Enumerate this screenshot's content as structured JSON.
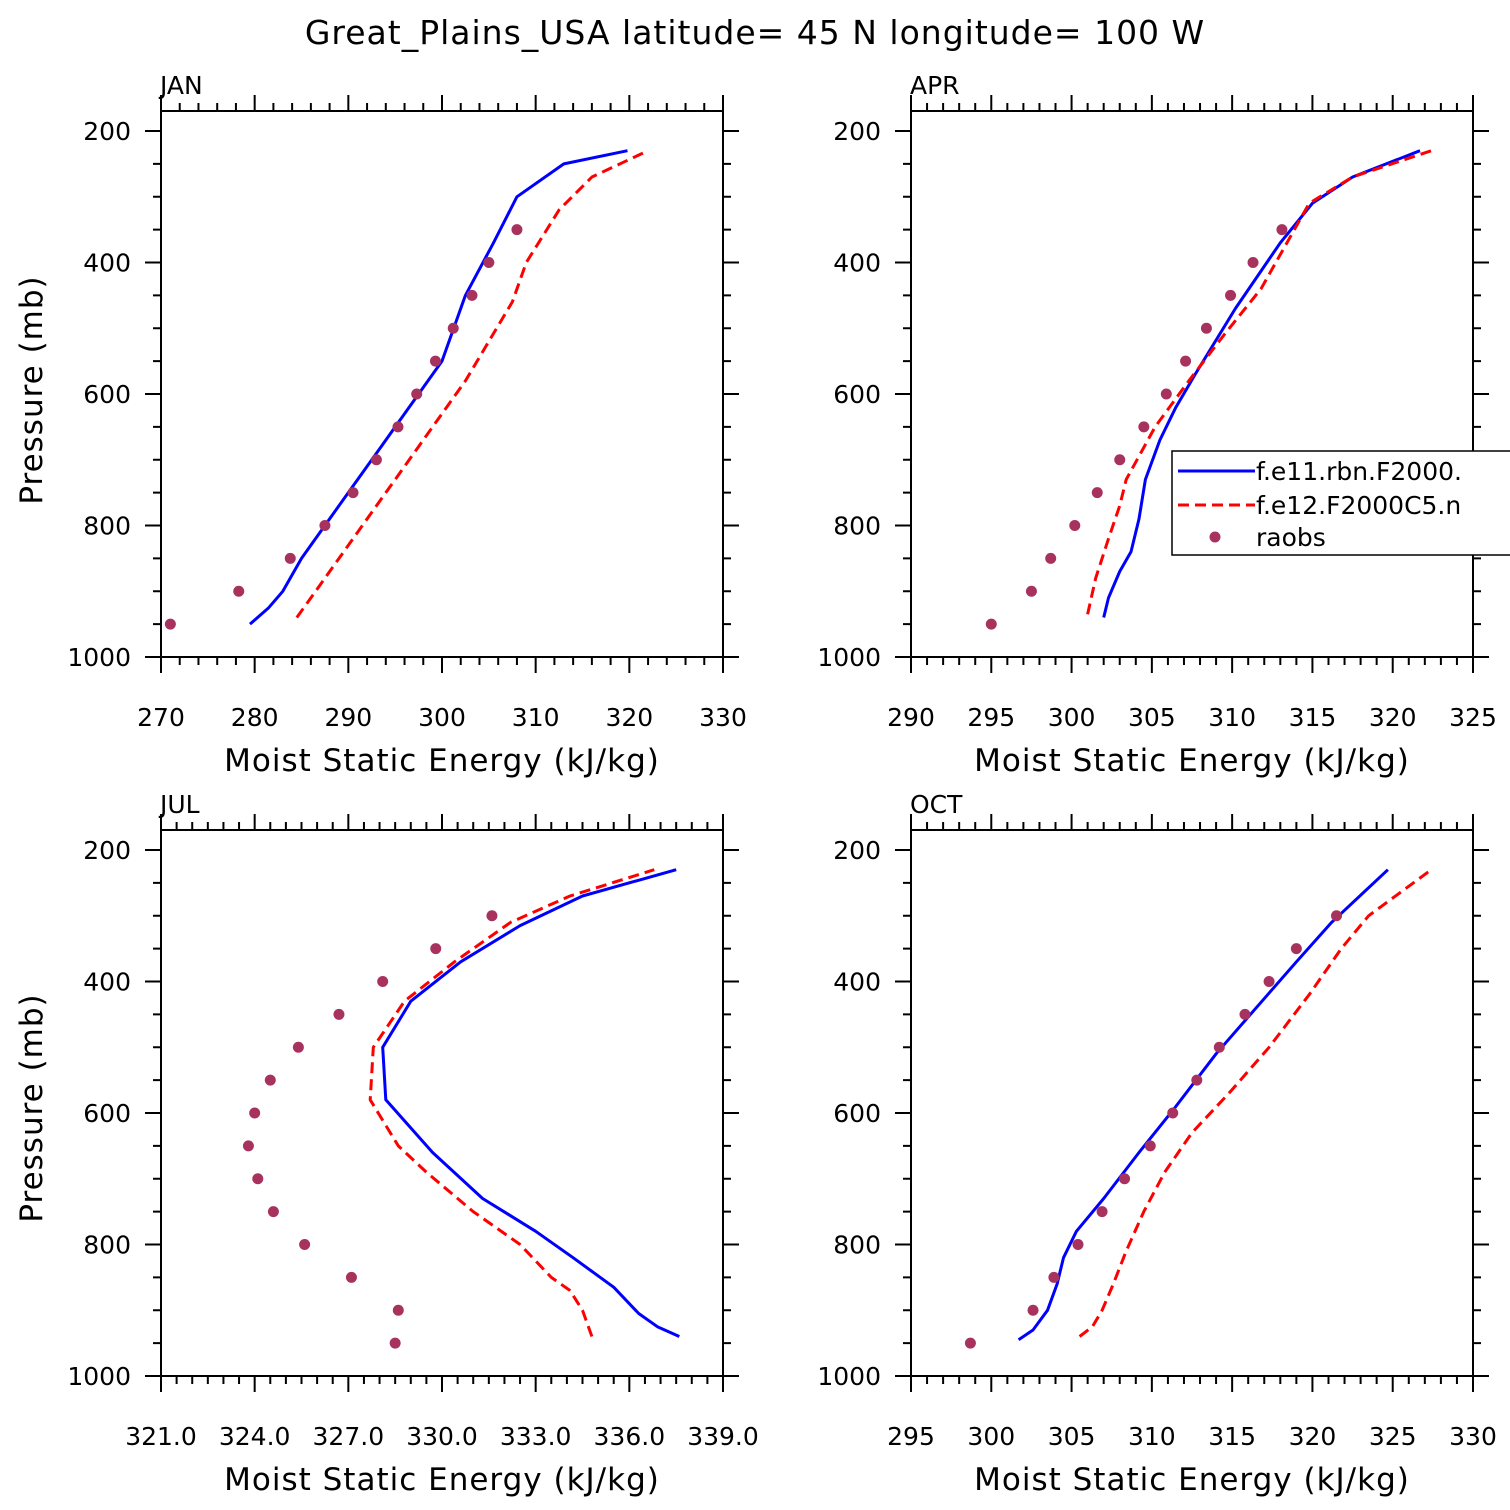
{
  "figure": {
    "title": "Great_Plains_USA  latitude= 45 N longitude= 100 W"
  },
  "colors": {
    "model1": "#0000ff",
    "model2": "#ff0000",
    "raobs": "#a8325e",
    "axes": "#000000"
  },
  "legend": {
    "entries": [
      {
        "label": "f.e11.rbn.F2000.",
        "style": "solid",
        "color": "#0000ff"
      },
      {
        "label": "f.e12.F2000C5.n",
        "style": "dashed",
        "color": "#ff0000"
      },
      {
        "label": "raobs",
        "style": "marker",
        "color": "#a8325e"
      }
    ]
  },
  "chart_data": [
    {
      "type": "line",
      "panel": "JAN",
      "title": "JAN",
      "xlabel": "Moist Static Energy (kJ/kg)",
      "ylabel": "Pressure (mb)",
      "xlim": [
        270,
        330
      ],
      "ylim": [
        1000,
        200
      ],
      "xticks": [
        270,
        280,
        290,
        300,
        310,
        320,
        330
      ],
      "xtick_labels": [
        "270",
        "280",
        "290",
        "300",
        "310",
        "320",
        "330"
      ],
      "xminor_step": 2,
      "yticks": [
        1000,
        800,
        600,
        400,
        200
      ],
      "ytick_labels": [
        "1000",
        "800",
        "600",
        "400",
        "200"
      ],
      "series": [
        {
          "name": "f.e11.rbn.F2000.",
          "style": "solid",
          "x": [
            279.5,
            281.5,
            283,
            285,
            287.5,
            290,
            292.5,
            295,
            297.5,
            300,
            302.5,
            305.5,
            308,
            313,
            319.8
          ],
          "y": [
            950,
            925,
            900,
            850,
            800,
            750,
            700,
            650,
            600,
            550,
            450,
            370,
            300,
            250,
            230
          ]
        },
        {
          "name": "f.e12.F2000C5.n",
          "style": "dashed",
          "x": [
            284.5,
            286.5,
            288.5,
            290.5,
            292.5,
            295,
            297.5,
            300,
            302.5,
            305,
            307.5,
            309,
            312.5,
            316,
            322
          ],
          "y": [
            940,
            900,
            860,
            820,
            780,
            730,
            680,
            630,
            580,
            520,
            460,
            400,
            320,
            270,
            230
          ]
        },
        {
          "name": "raobs",
          "style": "marker",
          "x": [
            271,
            278.3,
            283.8,
            287.5,
            290.5,
            293.0,
            295.3,
            297.3,
            299.3,
            301.2,
            303.2,
            305.0,
            308.0
          ],
          "y": [
            950,
            900,
            850,
            800,
            750,
            700,
            650,
            600,
            550,
            500,
            450,
            400,
            350
          ]
        }
      ]
    },
    {
      "type": "line",
      "panel": "APR",
      "title": "APR",
      "xlabel": "Moist Static Energy (kJ/kg)",
      "ylabel": "",
      "xlim": [
        290,
        325
      ],
      "ylim": [
        1000,
        200
      ],
      "xticks": [
        290,
        295,
        300,
        305,
        310,
        315,
        320,
        325
      ],
      "xtick_labels": [
        "290",
        "295",
        "300",
        "305",
        "310",
        "315",
        "320",
        "325"
      ],
      "xminor_step": 1,
      "yticks": [
        1000,
        800,
        600,
        400,
        200
      ],
      "ytick_labels": [
        "1000",
        "800",
        "600",
        "400",
        "200"
      ],
      "series": [
        {
          "name": "f.e11.rbn.F2000.",
          "style": "solid",
          "x": [
            302,
            302.3,
            303,
            303.7,
            304.2,
            304.6,
            305.5,
            306.5,
            307.7,
            310.2,
            313,
            315,
            317.5,
            321.7
          ],
          "y": [
            940,
            910,
            870,
            840,
            790,
            730,
            670,
            620,
            570,
            470,
            370,
            310,
            270,
            230
          ]
        },
        {
          "name": "f.e12.F2000C5.n",
          "style": "dashed",
          "x": [
            301,
            301.5,
            302.3,
            303,
            303.4,
            305.2,
            307.3,
            309.5,
            311.8,
            314.8,
            317.5,
            322.4
          ],
          "y": [
            935,
            880,
            820,
            770,
            730,
            650,
            580,
            510,
            440,
            310,
            270,
            230
          ]
        },
        {
          "name": "raobs",
          "style": "marker",
          "x": [
            295.0,
            297.5,
            298.7,
            300.2,
            301.6,
            303.0,
            304.5,
            305.9,
            307.1,
            308.4,
            309.9,
            311.3,
            313.1
          ],
          "y": [
            950,
            900,
            850,
            800,
            750,
            700,
            650,
            600,
            550,
            500,
            450,
            400,
            350
          ]
        }
      ]
    },
    {
      "type": "line",
      "panel": "JUL",
      "title": "JUL",
      "xlabel": "Moist Static Energy (kJ/kg)",
      "ylabel": "Pressure (mb)",
      "xlim": [
        321,
        339
      ],
      "ylim": [
        1000,
        200
      ],
      "xticks": [
        321,
        324,
        327,
        330,
        333,
        336,
        339
      ],
      "xtick_labels": [
        "321.0",
        "324.0",
        "327.0",
        "330.0",
        "333.0",
        "336.0",
        "339.0"
      ],
      "xminor_step": 0.5,
      "yticks": [
        1000,
        800,
        600,
        400,
        200
      ],
      "ytick_labels": [
        "1000",
        "800",
        "600",
        "400",
        "200"
      ],
      "series": [
        {
          "name": "f.e11.rbn.F2000.",
          "style": "solid",
          "x": [
            337.6,
            336.9,
            336.3,
            335.5,
            334.2,
            333.0,
            331.3,
            329.7,
            328.2,
            328.1,
            329.0,
            330.6,
            332.5,
            334.5,
            337.5
          ],
          "y": [
            940,
            925,
            905,
            865,
            820,
            780,
            730,
            660,
            580,
            500,
            430,
            370,
            315,
            270,
            230
          ]
        },
        {
          "name": "f.e12.F2000C5.n",
          "style": "dashed",
          "x": [
            334.8,
            334.5,
            334.1,
            333.5,
            332.5,
            331.0,
            329.5,
            328.6,
            327.7,
            327.8,
            328.8,
            330.4,
            332.2,
            334.1,
            336.8
          ],
          "y": [
            940,
            900,
            870,
            850,
            800,
            750,
            690,
            650,
            580,
            500,
            430,
            370,
            310,
            270,
            230
          ]
        },
        {
          "name": "raobs",
          "style": "marker",
          "x": [
            328.5,
            328.6,
            327.1,
            325.6,
            324.6,
            324.1,
            323.8,
            324.0,
            324.5,
            325.4,
            326.7,
            328.1,
            329.8,
            331.6
          ],
          "y": [
            950,
            900,
            850,
            800,
            750,
            700,
            650,
            600,
            550,
            500,
            450,
            400,
            350,
            300
          ]
        }
      ]
    },
    {
      "type": "line",
      "panel": "OCT",
      "title": "OCT",
      "xlabel": "Moist Static Energy (kJ/kg)",
      "ylabel": "",
      "xlim": [
        295,
        330
      ],
      "ylim": [
        1000,
        200
      ],
      "xticks": [
        295,
        300,
        305,
        310,
        315,
        320,
        325,
        330
      ],
      "xtick_labels": [
        "295",
        "300",
        "305",
        "310",
        "315",
        "320",
        "325",
        "330"
      ],
      "xminor_step": 1,
      "yticks": [
        1000,
        800,
        600,
        400,
        200
      ],
      "ytick_labels": [
        "1000",
        "800",
        "600",
        "400",
        "200"
      ],
      "series": [
        {
          "name": "f.e11.rbn.F2000.",
          "style": "solid",
          "x": [
            301.7,
            302.6,
            303.5,
            304.1,
            304.5,
            305.3,
            307.0,
            309.2,
            311.5,
            314.0,
            316.5,
            319.0,
            321.2,
            324.7
          ],
          "y": [
            945,
            930,
            900,
            860,
            820,
            780,
            730,
            660,
            590,
            510,
            440,
            370,
            310,
            230
          ]
        },
        {
          "name": "f.e12.F2000C5.n",
          "style": "dashed",
          "x": [
            305.5,
            306.3,
            306.9,
            307.6,
            308.4,
            309.5,
            310.8,
            312.5,
            314.8,
            317.3,
            319.8,
            321.8,
            323.5,
            327.4
          ],
          "y": [
            940,
            925,
            900,
            860,
            810,
            750,
            690,
            630,
            570,
            500,
            420,
            350,
            300,
            230
          ]
        },
        {
          "name": "raobs",
          "style": "marker",
          "x": [
            298.7,
            302.6,
            303.9,
            305.4,
            306.9,
            308.3,
            309.9,
            311.3,
            312.8,
            314.2,
            315.8,
            317.3,
            319.0,
            321.5
          ],
          "y": [
            950,
            900,
            850,
            800,
            750,
            700,
            650,
            600,
            550,
            500,
            450,
            400,
            350,
            300
          ]
        }
      ]
    }
  ]
}
